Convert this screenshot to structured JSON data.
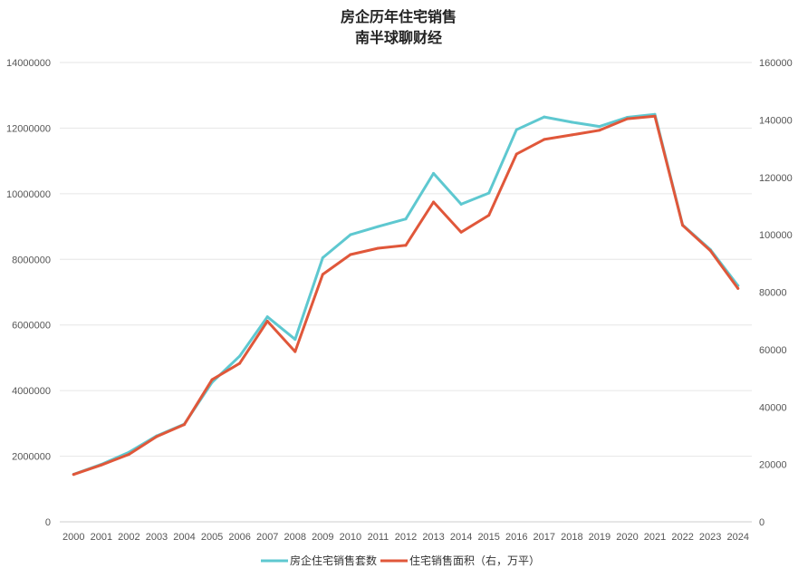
{
  "chart_data": {
    "type": "line",
    "title": "房企历年住宅销售",
    "subtitle": "南半球聊财经",
    "x": [
      "2000",
      "2001",
      "2002",
      "2003",
      "2004",
      "2005",
      "2006",
      "2007",
      "2008",
      "2009",
      "2010",
      "2011",
      "2012",
      "2013",
      "2014",
      "2015",
      "2016",
      "2017",
      "2018",
      "2019",
      "2020",
      "2021",
      "2022",
      "2023",
      "2024"
    ],
    "y_left_ticks": [
      "0",
      "2000000",
      "4000000",
      "6000000",
      "8000000",
      "10000000",
      "12000000",
      "14000000"
    ],
    "y_right_ticks": [
      "0",
      "20000",
      "40000",
      "60000",
      "80000",
      "100000",
      "120000",
      "140000",
      "160000"
    ],
    "ylim_left": [
      0,
      14000000
    ],
    "ylim_right": [
      0,
      160000
    ],
    "grid": true,
    "legend_position": "bottom",
    "series": [
      {
        "name": "房企住宅销售套数",
        "axis": "left",
        "color": "#5ec8d0",
        "values": [
          1450000,
          1750000,
          2120000,
          2620000,
          2980000,
          4250000,
          5050000,
          6250000,
          5560000,
          8050000,
          8750000,
          9000000,
          9230000,
          10620000,
          9680000,
          10020000,
          11950000,
          12340000,
          12180000,
          12050000,
          12330000,
          12420000,
          9050000,
          8300000,
          7200000
        ]
      },
      {
        "name": "住宅销售面积（右，万平）",
        "axis": "right",
        "color": "#e0573a",
        "values": [
          16500,
          19800,
          23500,
          29700,
          33900,
          49500,
          55200,
          69900,
          59300,
          86200,
          93100,
          95300,
          96300,
          111400,
          100900,
          106800,
          128100,
          133200,
          134800,
          136400,
          140400,
          141300,
          103300,
          94500,
          81300
        ]
      }
    ]
  }
}
